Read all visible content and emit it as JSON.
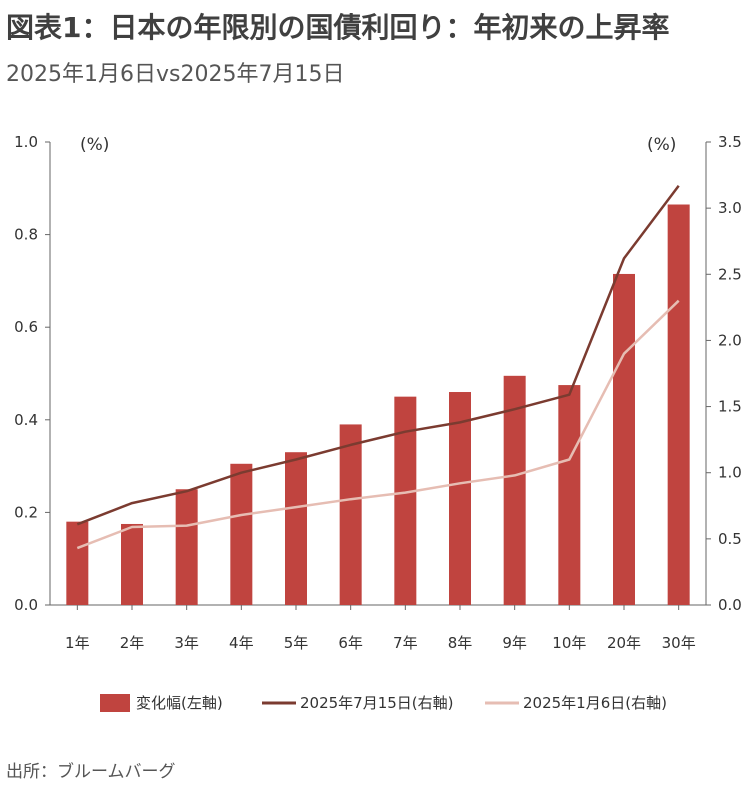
{
  "title": "図表1：日本の年限別の国債利回り：年初来の上昇率",
  "subtitle": "2025年1月6日vs2025年7月15日",
  "source": "出所：ブルームバーグ",
  "chart_data": {
    "type": "bar",
    "categories": [
      "1年",
      "2年",
      "3年",
      "4年",
      "5年",
      "6年",
      "7年",
      "8年",
      "9年",
      "10年",
      "20年",
      "30年"
    ],
    "left_axis": {
      "unit": "(%)",
      "ylim": [
        0,
        1.0
      ],
      "ticks": [
        "0.0",
        "0.2",
        "0.4",
        "0.6",
        "0.8",
        "1.0"
      ]
    },
    "right_axis": {
      "unit": "(%)",
      "ylim": [
        0,
        3.5
      ],
      "ticks": [
        "0.0",
        "0.5",
        "1.0",
        "1.5",
        "2.0",
        "2.5",
        "3.0",
        "3.5"
      ]
    },
    "series": [
      {
        "name": "変化幅(左軸)",
        "kind": "bar",
        "axis": "left",
        "color": "#c0443f",
        "values": [
          0.18,
          0.175,
          0.25,
          0.305,
          0.33,
          0.39,
          0.45,
          0.46,
          0.495,
          0.475,
          0.715,
          0.865
        ]
      },
      {
        "name": "2025年7月15日(右軸)",
        "kind": "line",
        "axis": "right",
        "color": "#7b3b30",
        "values": [
          0.61,
          0.77,
          0.86,
          1.0,
          1.1,
          1.21,
          1.31,
          1.38,
          1.48,
          1.59,
          2.62,
          3.17
        ]
      },
      {
        "name": "2025年1月6日(右軸)",
        "kind": "line",
        "axis": "right",
        "color": "#e6bdb3",
        "values": [
          0.43,
          0.59,
          0.6,
          0.68,
          0.74,
          0.8,
          0.85,
          0.92,
          0.98,
          1.1,
          1.9,
          2.3
        ]
      }
    ],
    "grid": false,
    "legend": "bottom"
  }
}
